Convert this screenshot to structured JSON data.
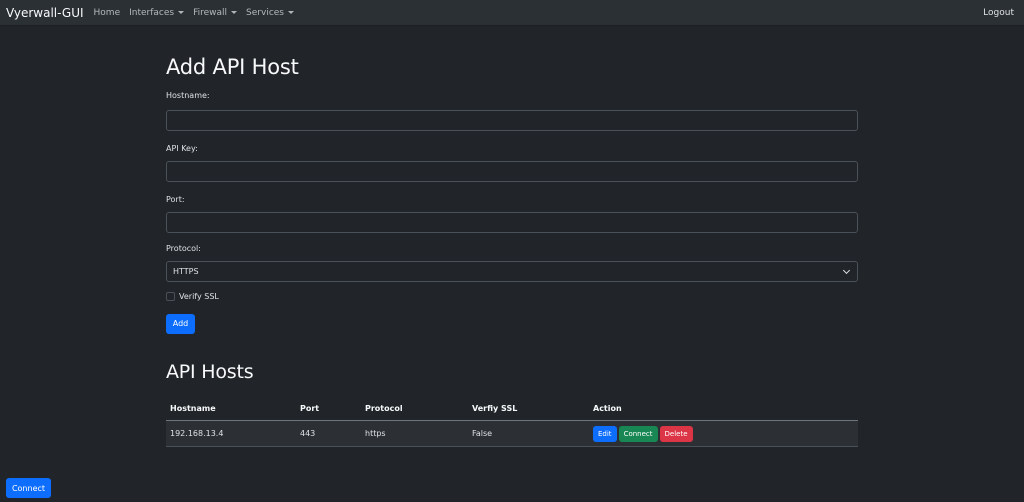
{
  "navbar": {
    "brand": "Vyerwall-GUI",
    "items": [
      "Home",
      "Interfaces",
      "Firewall",
      "Services"
    ],
    "logout": "Logout"
  },
  "form": {
    "title": "Add API Host",
    "hostname_label": "Hostname:",
    "hostname_value": "",
    "apikey_label": "API Key:",
    "apikey_value": "",
    "port_label": "Port:",
    "port_value": "",
    "protocol_label": "Protocol:",
    "protocol_value": "HTTPS",
    "verify_label": "Verify SSL",
    "verify_checked": false,
    "add_label": "Add"
  },
  "hosts": {
    "title": "API Hosts",
    "columns": [
      "Hostname",
      "Port",
      "Protocol",
      "Verfiy SSL",
      "Action"
    ],
    "rows": [
      {
        "hostname": "192.168.13.4",
        "port": "443",
        "protocol": "https",
        "verify": "False",
        "edit": "Edit",
        "connect": "Connect",
        "delete": "Delete"
      }
    ]
  },
  "footer": {
    "connect_label": "Connect"
  },
  "colors": {
    "primary": "#0d6efd",
    "success": "#198754",
    "danger": "#dc3545",
    "background": "#212529",
    "navbar": "#2b3035"
  }
}
